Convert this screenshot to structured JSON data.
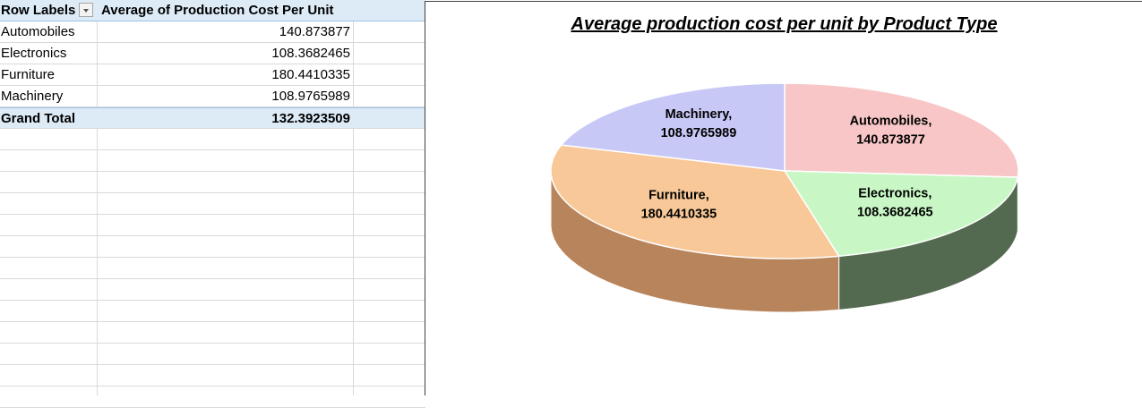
{
  "pivot": {
    "header": {
      "row_labels": "Row Labels",
      "value_field": "Average of Production Cost Per Unit"
    },
    "rows": [
      {
        "label": "Automobiles",
        "value": "140.873877"
      },
      {
        "label": "Electronics",
        "value": "108.3682465"
      },
      {
        "label": "Furniture",
        "value": "180.4410335"
      },
      {
        "label": "Machinery",
        "value": "108.9765989"
      }
    ],
    "grand_total": {
      "label": "Grand Total",
      "value": "132.3923509"
    }
  },
  "chart_data": {
    "type": "pie",
    "title": "Average production cost per unit by Product Type",
    "categories": [
      "Automobiles",
      "Electronics",
      "Furniture",
      "Machinery"
    ],
    "values": [
      140.873877,
      108.3682465,
      180.4410335,
      108.9765989
    ],
    "labels": [
      "Automobiles,",
      "Electronics,",
      "Furniture,",
      "Machinery,"
    ],
    "value_labels": [
      "140.873877",
      "108.3682465",
      "180.4410335",
      "108.9765989"
    ],
    "colors": [
      "#f8c6c6",
      "#c8f7c5",
      "#f8c898",
      "#c8c8f7"
    ],
    "side_colors": [
      "#b08a8a",
      "#546a50",
      "#b8845c",
      "#8a8ab0"
    ],
    "style": "3d",
    "legend": "none"
  }
}
